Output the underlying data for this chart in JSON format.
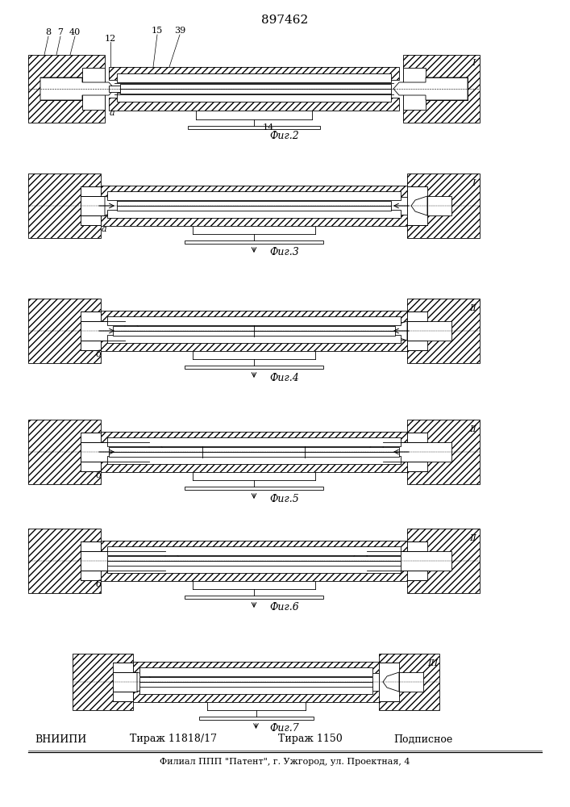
{
  "patent_number": "897462",
  "bg": "#ffffff",
  "lc": "#000000",
  "fig_labels": [
    "Фиг.2",
    "Фиг.3",
    "Фиг.4",
    "Фиг.5",
    "Фиг.6",
    "Фиг.7"
  ],
  "bottom_labels": [
    "ВНИИПИ",
    "Тираж 11818/17",
    "Тираж 1150",
    "Подписное"
  ],
  "address": "Филиал ППП \"Патент\", г. Ужгород, ул. Проектная, 4",
  "fig_centers_y": [
    890,
    745,
    590,
    440,
    305,
    155
  ],
  "label14_text": "14"
}
